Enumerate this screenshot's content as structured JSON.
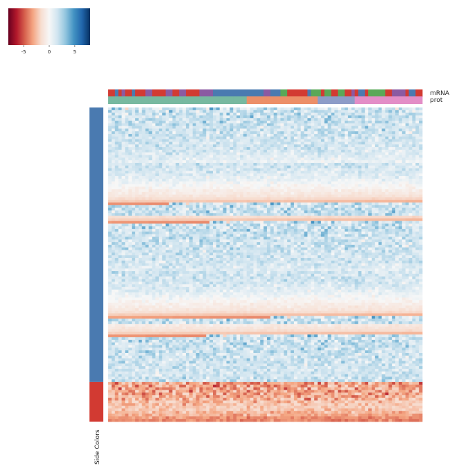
{
  "chart_data": {
    "type": "heatmap",
    "colormap": "RdBu_r",
    "colorbar": {
      "ticks": [
        -5,
        0,
        5
      ],
      "tick_labels": [
        "-5",
        "0",
        "5"
      ],
      "range": [
        -8,
        8
      ],
      "colors": [
        "#67001f",
        "#b2182b",
        "#d6604d",
        "#f4a582",
        "#f7ddd0",
        "#f7f7f7",
        "#d1e5f0",
        "#92c5de",
        "#4393c3",
        "#2166ac",
        "#053061"
      ]
    },
    "column_annotations": [
      {
        "name": "mRNA"
      },
      {
        "name": "prot"
      }
    ],
    "row_annotation": {
      "name": "Side Colors",
      "groups": [
        {
          "color": "#4a7ab0",
          "count": 104
        },
        {
          "color": "#d23a32",
          "count": 15
        }
      ]
    },
    "annotation_colors": {
      "mRNA": [
        "#d23a32",
        "#4a7ab0",
        "#8b5aa2",
        "#5aa857"
      ],
      "prot": [
        "#77b9a0",
        "#ec8f68",
        "#8d9cc8",
        "#e38ec7"
      ]
    },
    "column_annotation_values": {
      "mRNA": [
        0,
        0,
        1,
        0,
        2,
        0,
        0,
        1,
        0,
        0,
        0,
        2,
        2,
        0,
        0,
        0,
        0,
        2,
        2,
        0,
        0,
        2,
        2,
        0,
        0,
        0,
        0,
        2,
        2,
        2,
        2,
        1,
        1,
        1,
        1,
        1,
        1,
        1,
        1,
        1,
        1,
        1,
        1,
        1,
        1,
        1,
        2,
        2,
        1,
        1,
        1,
        3,
        3,
        0,
        0,
        0,
        0,
        0,
        0,
        1,
        3,
        3,
        3,
        0,
        3,
        3,
        0,
        0,
        3,
        3,
        0,
        0,
        2,
        0,
        1,
        1,
        0,
        3,
        3,
        3,
        3,
        3,
        0,
        0,
        2,
        2,
        2,
        2,
        0,
        1,
        1,
        0,
        0
      ],
      "prot": [
        0,
        0,
        0,
        0,
        0,
        0,
        0,
        0,
        0,
        0,
        0,
        0,
        0,
        0,
        0,
        0,
        0,
        0,
        0,
        0,
        0,
        0,
        0,
        0,
        0,
        0,
        0,
        0,
        0,
        0,
        0,
        0,
        0,
        0,
        0,
        0,
        0,
        0,
        0,
        0,
        0,
        1,
        1,
        1,
        1,
        1,
        1,
        1,
        1,
        1,
        1,
        1,
        1,
        1,
        1,
        1,
        1,
        1,
        1,
        1,
        1,
        1,
        2,
        2,
        2,
        2,
        2,
        2,
        2,
        2,
        2,
        2,
        2,
        3,
        3,
        3,
        3,
        3,
        3,
        3,
        3,
        3,
        3,
        3,
        3,
        3,
        3,
        3,
        3,
        3,
        3,
        3,
        3
      ]
    },
    "heatmap": {
      "n_rows": 119,
      "n_cols": 93,
      "value_range": [
        -8,
        8
      ]
    },
    "values_encoding": "row-major, base-64 alphabet '0-9A-Za-z+/' (code 0..63) mapped linearly to -8..8",
    "values": "ZvhtaEdZhTgcfVVPiiffVbUfjtiifNzlvUdSsYfVXQcZhhrdkpWbYXfqoZdgZeWWTiXYRhnWiYcjWibbnTefhJmbcZVheXcllajeWXeecjokkcjdXkfffbXckbhpYcaXhhZnUmacfVgfPvgWiXiaaPclZidaWZYnVkhiYcmjmTWhRcfieoTgaUbhkiiggWicabXViZkSeemjZipdpWkUcOYVYlemchgbZgbmmWjWfgsdjPbkTUckiggZgXgbVWrgcuYrgUXlfgjYhZjWncYbpWmWaUPkYgdiaXlfTraiVjfbikhWVYjhWWnXsYiRhjdncVkiedqemZdXlrWggWYgcjXqbZkddjaccVjYhcYYfdjVYglkggVdXdekfkXabfedfrvdgjnbXmSndcYefbfnSbYaZbWeafPfaZgncbZgbiblhgidZfVUgcqhmjvYUbdpVkVbelhflfiTkaTiXtegYaWqhlqmZchigXclfeghmYkXVccXjvbhhbeYfXobQanPgYcNqZVaYdqheeYZWYaRWdgfbgjimXmXhfcikdbjbaYlZcWfYVoXeknkggcaRhZgVYfgiefhgdYidqdeYcXcXfnefjdjcmfmcfifZsdicXrqebhZbRZdZiSbTgbfdigdjbcYjaebdfeibhkiVjcZSgXgfhbRggUpejjlhTkgahbZdhadgbaUeaaVfkelgmcbbfdaVcohXgnbThlXWggljUdfgbeXfcZgtXfYgtlVXYRbmkfVjnkUihdbcVWhddleYcdXtdmjhWlhhaeldjWmmgpdaWgZaUfSmZbbhnWqXYfmjsniamhVifZYgXPiZmabcjhddnjeddbYRmkXeipkdcmZpaahmgddfYcjbglfgbhmgXpmcWQgcaYfdfYVbfWXkejcdWYYbcfcQhaZcedlcVRmZcedjejjjedmghhVkmhmaTebYZVbfhcXdcadcZlWbSbaeaYiknThbcdeTaRjYYqglggmWUVbhhhbbZXWYbdekbcVkWccbcXfZfcjbkghjlehgXOdZefgXaYiXeShlcbWhSjXWceaZhgUhsdeXcZgfbbYZdfeiYeZeYhefYklgbbXUkeYgeZbohcYaaQbhUmjalVYTfbpfbalblbYcbfYZgcUnfhmXfhdoXiUUhbbXmXcgbWYaWWchUmYbglijhfeUlhddVaYghhfTrXdbZldWdPhcXbhdhdWbiaUbdblVgmhVhWkcYeXfmTUbXjXcgeeYgcibWZdiaZRaWfZeXifYkXmagjcWcidcgqXjaeYhRdddZYifflVaeQnbjbfaUfdiieTbZhXimcXhbTiWWdSilXkibhcSlnpcigdhdVccgkaTmSNghdeifeghXmlcWaXmWgnZdeRqcgkedWgYbfadenpTchjcbeUgaaTZdbecjXnmVacfbZafWqdnaccfdeeeidfhkeeWgYjjUgbdbihkdTbqeaUjWfSXjfgUadhZjkcWhfjiacaimYlUbiZbgUZjeaceaWbdgXWcchidcZgfZihVeicjXXbebflcUbUfbYgeeZdVYeYadcWiccbXjhaZkbdfhddOhdjhjSicbbbYdbcbdcjfhWlXjSYhaTdcgcWfkVZeRdafkbjcdTaamWkZgffhfXWYWXlXgnfdZaiZgVdjiXbVicZdeWdkcbZkdYUbYdaYiiTbfbdabcnlZjbehVbZjXdbfgjcjgbeeaaeihYcadgiWXYhaWeeVdbdSeeZYZiZbfhfddggZZigbWefbbXlUaiaUXWXgbYedVdTZfbjffeZdcfcdeaecaWdZdcdcSYdbaWdcXeRmWfdadbchabiegggeUaZZgdUicgeYbieTfidXeVYjhWZffWgclfdeWdWkVWfcbaYcaVZVXkaedbgXWZaeXUegcdfXgfheXUeWVhdaYedeXffTeddhkaYYbbahdYXWbeVfbUUWfbYaYdWfaeaeePdZbZaYcbbbhgVbeXcjYZUWjWdbbdmbWhacdhZdchbVfaakdYeeYhabdaXfcgcchefcRcbjhXkfjdbcgaaZZfiYeYZYccRhXVgcegUfcciagcbXbTdeYdbdfZbSfPfeZYYfVfhahddkgdgZkbddWfeVVdXQQgcWhXXjYdeebibdgiWgaZfeccaYfjfdeYYYZhbeYbZYdaVVcajeaXgnaagZdgbZfakaadXhfkcfkaiVVZdcbWVecdYVYVfbdSTcdaYfXYhgdgbaVbWfddWYeYdfcfeXUcYZaXZRahecXVfeUdacfdYbUfdajafgaXbcdibbeeZZeTcYeZZdfWciYbTZfeaTaeTbfedjieaeZYicfVZeZQXeadUXYcXQVbYdaZdWbZZfaaXVXZaiXfbgZXgZfYhTbVdXchaYgbXbaYdVgdVafZXYbdbZgbWebcabWdXbdgbXbWTTUcYWjkVhUaeXZhbXbWYeYebbcQVWaeZWdbcXVZbUYSbZeeaeVhdZbdbbVbbagfZdbbYYZRcaSXVbcceXYkcccbWWcUbbZhbbUZiZcXTUcVbWWbaeWXYYSWVVYZdfabdZdcYdddWUVWYdXZagYWYZabfaceUWcdXbYVWYZYeYaaWSbWXUYZXXfZTaYWWYXYSXYaVVUbeTZXXfYbYWdQYYbcXcbeYaVSXZVWXaWbWbUdaabWPcaZgbfZaXZZUXTaSRXZddddZWcZXbdVbXbYZXgUYecbVXZTcRaRYbVWYaaWYXZaTbYVVXaVWaNZYYUXYVXPXWcXXUcVOVRXXSUYZbZYXaWVVVVZXbXXYUVdWYXbdWUVXXeSRVcZWaVWYaZVbTTUWYcUbWZTcZWZTRTTZaTZWYRVXXRXVXUVdVaUcXSXWZYXTXZZZUXUUVRbXYSUTWXUZVQWXWaVXXYVXTSYWSYTUVYXRVRUSUUPVUWRTcVXUTWUUXUVXUVZbQQbRUVSUSQSRUTUWSTTVUTPTWVURSTUWOTUYVRSSYUXPQZWRYUTVWXRTUWQRUYYUVUVRXQTVVQVTXXRUSSPVTTRPPUUVOOWYRQPRQRSQVMXQTRTSUUXVTSSSVUZRRTSUTSQRRRUSRWPURWUQQPWUXWRPRSXTTTUVPNRSVSRRTSSSQWQVUORQTSRVPRRRSRRTQSWOSQSYSRNSVQUTPROTQPQRUOOTRRPSSRUYRSMROSPMQPOQOSNQSQVTRPTQROWSRSQPSRTPQSNRMOQTUTTQUNPTPRQSTTRQSPPRQRSSRSNQRTPPPPQRSQMSOPTPNOTSOQSTRQRQQTSSPRQRRSNROOLNMUMSRSPOVSSSOPPPQQPQNRNRPOROOPNMQRTOOOMPPRPMQPPPPQRNNMOORQQQPROPQQNQOOORRPPRSQOMLSRNNOQPQQNONOPOLNMPPQLPTNQQMQNQMSNOOPNNNOQNOQOSMNQOKOMQRPNMMNNPPLMLPPKOLPPPJNMMNKNOMPOOOLPOKMOLLNNLKOMMNOOOOLNNJLNMQMMMLOOPLNNMNNOJRKMKMPLNLOLMKPKPNMMONLQNKMLNMNMNNOLNLNLLMPKMMOLLLOPOLNNKLMPLOKMLOJLLLKOKMNQLLNNONONMOLNNNMLLJKJMJMLNKJKNMKPLKQMKJMMKKKMKJNLLMMMIKHKKNJLKJNKLKLMNJKMLJJNIMMMKNKNLKNJLKJKKJJKKLLLNJJLJLLKKMLKHNKJNLKKLILMLKKHLJJKLJKKMKKKJLJIJMIIKKKJLJJKIKHMLIJJJIMKLIHHLHLKKKJLLHJKIKKJKKHHLILJIJIGIJLIJHHJIJIIJIGIJJGJJIKGJJHIIIHIHLGJJIIIHHJKKHJHIGIHGHIJHGHJHJIHGHJHHIHGGHJHHGHHHHIHGIHGHIGFFHGHFGFHFHGHIHGHHHHGGIGHGHHGFGGGGFGGGGGGGGFEGGGGFEFGFGGFGFFFFFFFFFFFFFFFFFDEFFEEFEEFEEFEEEEEEEEEEEEEEDEEECDEDEDDDDDDDDDDDDDCCDDCCCCCCCCBCCCCBCCBCCCCBBBBBBBBBBBBABBBBBBBAABAAAAAAAAAAAA999999999999888888888888777777777777666666666665555555555555444444444433333333322222222222111111111110000000"
  }
}
